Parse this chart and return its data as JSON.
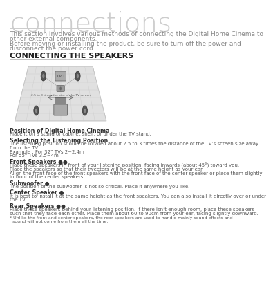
{
  "bg_color": "#ffffff",
  "title": "connections",
  "title_font_size": 28,
  "title_color": "#cccccc",
  "subtitle_line1": "This section involves various methods of connecting the Digital Home Cinema to",
  "subtitle_line2": "other external components.",
  "subtitle_line3": "Before moving or installing the product, be sure to turn off the power and",
  "subtitle_line4": "disconnect the power cord.",
  "subtitle_font_size": 6.5,
  "subtitle_color": "#888888",
  "section_title": "CONNECTING THE SPEAKERS",
  "section_title_font_size": 8,
  "section_title_color": "#222222",
  "body_font_size": 5.5,
  "body_color": "#555555",
  "bold_color": "#333333",
  "sections": [
    {
      "heading": "Position of Digital Home Cinema",
      "body": "Place it on a stand or cabinet shelf, or under the TV stand."
    },
    {
      "heading": "Selecting the Listening Position",
      "body": "The listening position should be located about 2.5 to 3 times the distance of the TV’s screen size away\nfrom the TV.\nExample : For 32” TVs 2~2.4m\nFor 55” TVs 3.5~4m"
    },
    {
      "heading": "Front Speakers ●●",
      "body": "Place these speakers in front of your listening position, facing inwards (about 45°) toward you.\nPlace the speakers so that their tweeters will be at the same height as your ear.\nAlign the front face of the front speakers with the front face of the center speaker or place them slightly\nin front of the center speakers."
    },
    {
      "heading": "Subwoofer ●",
      "body": "The position of the subwoofer is not so critical. Place it anywhere you like."
    },
    {
      "heading": "Center Speaker ●",
      "body": "It is best to install it at the same height as the front speakers. You can also install it directly over or under\nthe TV."
    },
    {
      "heading": "Rear Speakers ●●",
      "body": "Place these speakers behind your listening position. If there isn’t enough room, place these speakers\nsuch that they face each other. Place them about 60 to 90cm from your ear, facing slightly downward."
    }
  ],
  "footnote": "* Unlike the front and center speakers, the rear speakers are used to handle mainly sound effects and\n  sound will not come from them all the time."
}
